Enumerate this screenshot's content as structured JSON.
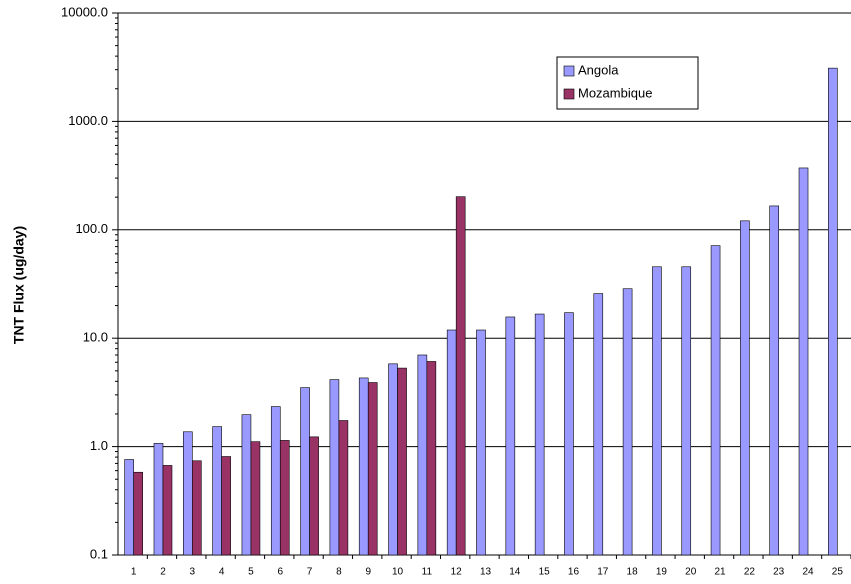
{
  "chart_data": {
    "type": "bar",
    "y_label": "TNT Flux (ug/day)",
    "categories": [
      "1",
      "2",
      "3",
      "4",
      "5",
      "6",
      "7",
      "8",
      "9",
      "10",
      "11",
      "12",
      "13",
      "14",
      "15",
      "16",
      "17",
      "18",
      "19",
      "20",
      "21",
      "22",
      "23",
      "24",
      "25"
    ],
    "series": [
      {
        "name": "Angola",
        "color": "#9999ff",
        "values": [
          0.76,
          1.07,
          1.37,
          1.53,
          1.97,
          2.34,
          3.5,
          4.15,
          4.3,
          5.8,
          7.0,
          11.9,
          11.9,
          15.7,
          16.7,
          17.2,
          25.8,
          28.6,
          45.6,
          45.6,
          71.4,
          121,
          166,
          372,
          3100
        ]
      },
      {
        "name": "Mozambique",
        "color": "#993366",
        "values": [
          0.58,
          0.67,
          0.74,
          0.81,
          1.11,
          1.14,
          1.23,
          1.74,
          3.9,
          5.3,
          6.1,
          202,
          null,
          null,
          null,
          null,
          null,
          null,
          null,
          null,
          null,
          null,
          null,
          null,
          null
        ]
      }
    ],
    "ylim": [
      0.1,
      10000
    ],
    "yticks": [
      {
        "value": 0.1,
        "label": "0.1"
      },
      {
        "value": 1,
        "label": "1.0"
      },
      {
        "value": 10,
        "label": "10.0"
      },
      {
        "value": 100,
        "label": "100.0"
      },
      {
        "value": 1000,
        "label": "1000.0"
      },
      {
        "value": 10000,
        "label": "10000.0"
      }
    ],
    "log_scale": true,
    "grid": true,
    "legend_position": "top-right"
  }
}
